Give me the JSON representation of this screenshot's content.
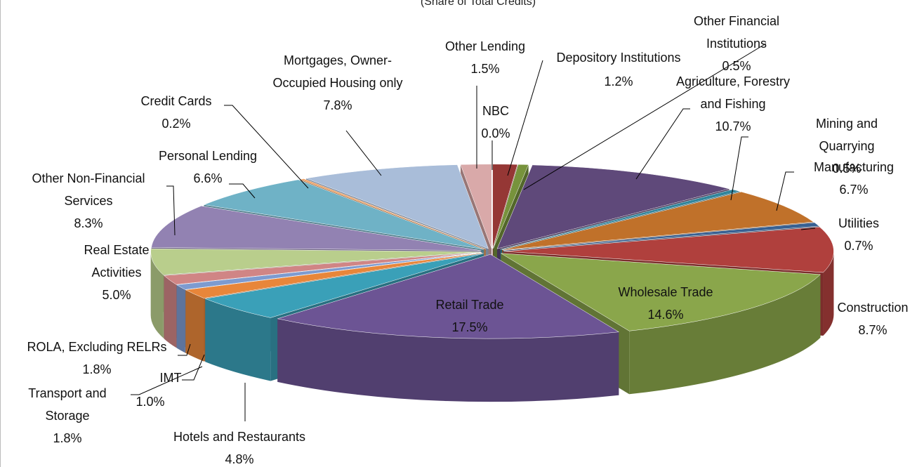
{
  "chart_data": {
    "type": "pie",
    "subtitle": "(Share of Total Credits)",
    "categories": [
      "NBC",
      "Depository Institutions",
      "Other Financial\nInstitutions",
      "Agriculture, Forestry\nand Fishing",
      "Mining and Quarrying",
      "Manufacturing",
      "Utilities",
      "Construction",
      "Wholesale Trade",
      "Retail Trade",
      "Hotels and Restaurants",
      "Transport and\nStorage",
      "IMT",
      "ROLA, Excluding RELRs",
      "Real Estate\nActivities",
      "Other Non-Financial\nServices",
      "Personal Lending",
      "Credit Cards",
      "Mortgages, Owner-\nOccupied Housing only",
      "Other Lending"
    ],
    "values": [
      0.0,
      1.2,
      0.5,
      10.7,
      0.5,
      6.7,
      0.7,
      8.7,
      14.6,
      17.5,
      4.8,
      1.8,
      1.0,
      1.8,
      5.0,
      8.3,
      6.6,
      0.2,
      7.8,
      1.5
    ],
    "value_labels": [
      "0.0%",
      "1.2%",
      "0.5%",
      "10.7%",
      "0.5%",
      "6.7%",
      "0.7%",
      "8.7%",
      "14.6%",
      "17.5%",
      "4.8%",
      "1.8%",
      "1.0%",
      "1.8%",
      "5.0%",
      "8.3%",
      "6.6%",
      "0.2%",
      "7.8%",
      "1.5%"
    ],
    "colors": [
      "#4f81bd",
      "#953735",
      "#77933c",
      "#5f497a",
      "#31859c",
      "#c0712a",
      "#376092",
      "#b0403d",
      "#8aa64b",
      "#6c5494",
      "#3aa0b8",
      "#e8863a",
      "#7d9bd0",
      "#d08585",
      "#b9ce8c",
      "#9282b2",
      "#6fb2c6",
      "#f0a060",
      "#a9bdd9",
      "#d9a9a9"
    ]
  }
}
